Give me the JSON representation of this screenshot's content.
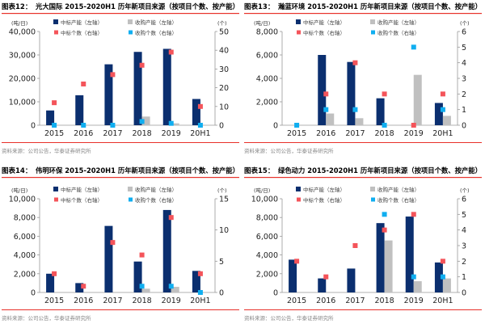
{
  "colors": {
    "won_capacity": "#0b2f6f",
    "acquired_capacity": "#c0c0c0",
    "won_count": "#f4545a",
    "acquired_count": "#10aef0",
    "rule": "#e8302a"
  },
  "legend": [
    "中标产能（左轴）",
    "收购产能（左轴）",
    "中标个数（右轴）",
    "收购个数（右轴）"
  ],
  "source": "资料来源：公司公告，华泰证券研究所",
  "chart_data": [
    {
      "type": "bar+scatter",
      "figure_label": "图表12：",
      "title": "光大国际 2015-2020H1 历年新项目来源（按项目个数、按产能）",
      "left_unit": "(吨/日)",
      "right_unit": "(个)",
      "categories": [
        "2015",
        "2016",
        "2017",
        "2018",
        "2019",
        "20H1"
      ],
      "left_ylim": [
        0,
        40000
      ],
      "left_ticks": [
        "0",
        "10,000",
        "20,000",
        "30,000",
        "40,000"
      ],
      "left_tick_values": [
        0,
        10000,
        20000,
        30000,
        40000
      ],
      "right_ylim": [
        0,
        50
      ],
      "right_ticks": [
        "0",
        "10",
        "20",
        "30",
        "40",
        "50"
      ],
      "right_tick_values": [
        0,
        10,
        20,
        30,
        40,
        50
      ],
      "series": [
        {
          "name": "中标产能（左轴）",
          "axis": "left",
          "kind": "bar",
          "values": [
            6300,
            12800,
            26000,
            31300,
            32600,
            11200
          ]
        },
        {
          "name": "收购产能（左轴）",
          "axis": "left",
          "kind": "bar",
          "values": [
            0,
            0,
            0,
            3700,
            800,
            0
          ]
        },
        {
          "name": "中标个数（右轴）",
          "axis": "right",
          "kind": "marker",
          "values": [
            12,
            22,
            27,
            32,
            39,
            10
          ]
        },
        {
          "name": "收购个数（右轴）",
          "axis": "right",
          "kind": "marker",
          "values": [
            0,
            0,
            0,
            2,
            1,
            0
          ]
        }
      ]
    },
    {
      "type": "bar+scatter",
      "figure_label": "图表13：",
      "title": "瀚蓝环境 2015-2020H1 历年新项目来源（按项目个数、按产能）",
      "left_unit": "(吨/日)",
      "right_unit": "(个)",
      "categories": [
        "2015",
        "2016",
        "2017",
        "2018",
        "2019",
        "20H1"
      ],
      "left_ylim": [
        0,
        8000
      ],
      "left_ticks": [
        "0",
        "2,000",
        "4,000",
        "6,000",
        "8,000"
      ],
      "left_tick_values": [
        0,
        2000,
        4000,
        6000,
        8000
      ],
      "right_ylim": [
        0,
        6
      ],
      "right_ticks": [
        "0",
        "1",
        "2",
        "3",
        "4",
        "5",
        "6"
      ],
      "right_tick_values": [
        0,
        1,
        2,
        3,
        4,
        5,
        6
      ],
      "series": [
        {
          "name": "中标产能（左轴）",
          "axis": "left",
          "kind": "bar",
          "values": [
            0,
            6000,
            5400,
            2300,
            0,
            1900
          ]
        },
        {
          "name": "收购产能（左轴）",
          "axis": "left",
          "kind": "bar",
          "values": [
            0,
            1000,
            600,
            0,
            4300,
            800
          ]
        },
        {
          "name": "中标个数（右轴）",
          "axis": "right",
          "kind": "marker",
          "values": [
            null,
            2,
            4,
            2,
            0,
            2
          ]
        },
        {
          "name": "收购个数（右轴）",
          "axis": "right",
          "kind": "marker",
          "values": [
            0,
            1,
            1,
            0,
            5,
            1
          ]
        }
      ]
    },
    {
      "type": "bar+scatter",
      "figure_label": "图表14：",
      "title": "伟明环保 2015-2020H1 历年新项目来源（按项目个数、按产能）",
      "left_unit": "(吨/日)",
      "right_unit": "(个)",
      "categories": [
        "2015",
        "2016",
        "2017",
        "2018",
        "2019",
        "20H1"
      ],
      "left_ylim": [
        0,
        10000
      ],
      "left_ticks": [
        "0",
        "2,000",
        "4,000",
        "6,000",
        "8,000",
        "10,000"
      ],
      "left_tick_values": [
        0,
        2000,
        4000,
        6000,
        8000,
        10000
      ],
      "right_ylim": [
        0,
        15
      ],
      "right_ticks": [
        "0",
        "5",
        "10",
        "15"
      ],
      "right_tick_values": [
        0,
        5,
        10,
        15
      ],
      "series": [
        {
          "name": "中标产能（左轴）",
          "axis": "left",
          "kind": "bar",
          "values": [
            2000,
            1000,
            7100,
            3300,
            8800,
            2300
          ]
        },
        {
          "name": "收购产能（左轴）",
          "axis": "left",
          "kind": "bar",
          "values": [
            0,
            0,
            0,
            400,
            600,
            0
          ]
        },
        {
          "name": "中标个数（右轴）",
          "axis": "right",
          "kind": "marker",
          "values": [
            3,
            1,
            8,
            6,
            12,
            3
          ]
        },
        {
          "name": "收购个数（右轴）",
          "axis": "right",
          "kind": "marker",
          "values": [
            null,
            null,
            null,
            1,
            1,
            0
          ]
        }
      ]
    },
    {
      "type": "bar+scatter",
      "figure_label": "图表15：",
      "title": "绿色动力 2015-2020H1 历年新项目来源（按项目个数、按产能）",
      "left_unit": "(吨/日)",
      "right_unit": "(个)",
      "categories": [
        "2015",
        "2016",
        "2017",
        "2018",
        "2019",
        "20H1"
      ],
      "left_ylim": [
        0,
        10000
      ],
      "left_ticks": [
        "0",
        "2,000",
        "4,000",
        "6,000",
        "8,000",
        "10,000"
      ],
      "left_tick_values": [
        0,
        2000,
        4000,
        6000,
        8000,
        10000
      ],
      "right_ylim": [
        0,
        6
      ],
      "right_ticks": [
        "0",
        "1",
        "2",
        "3",
        "4",
        "5",
        "6"
      ],
      "right_tick_values": [
        0,
        1,
        2,
        3,
        4,
        5,
        6
      ],
      "series": [
        {
          "name": "中标产能（左轴）",
          "axis": "left",
          "kind": "bar",
          "values": [
            3500,
            1500,
            2550,
            7400,
            8100,
            3200
          ]
        },
        {
          "name": "收购产能（左轴）",
          "axis": "left",
          "kind": "bar",
          "values": [
            0,
            0,
            0,
            5550,
            1200,
            1500
          ]
        },
        {
          "name": "中标个数（右轴）",
          "axis": "right",
          "kind": "marker",
          "values": [
            2,
            1,
            3,
            4,
            5,
            2
          ]
        },
        {
          "name": "收购个数（右轴）",
          "axis": "right",
          "kind": "marker",
          "values": [
            null,
            null,
            null,
            5,
            1,
            1
          ]
        }
      ]
    }
  ]
}
